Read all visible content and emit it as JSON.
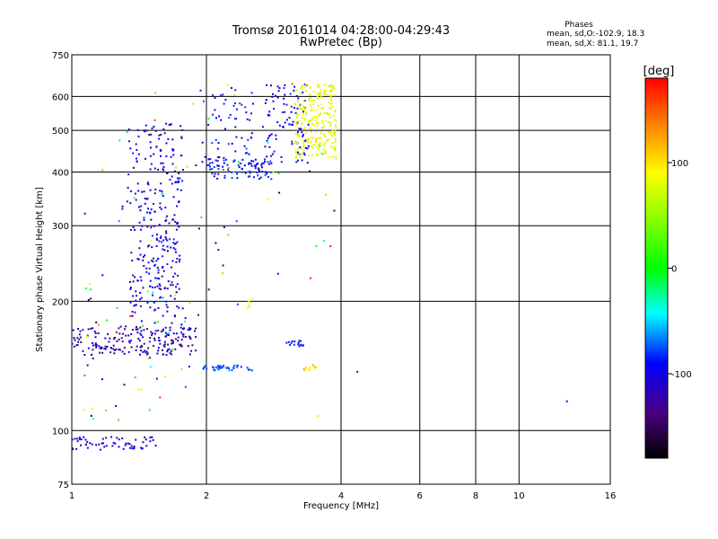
{
  "chart_data": {
    "type": "scatter",
    "title": "Tromsø 20161014 04:28:00-04:29:43",
    "subtitle": "RwPretec (Bp)",
    "xlabel": "Frequency [MHz]",
    "ylabel": "Stationary phase Virtual Height [km]",
    "x_scale": "log",
    "y_scale": "log",
    "xlim": [
      1,
      16
    ],
    "ylim": [
      75,
      750
    ],
    "x_ticks": [
      1,
      2,
      4,
      6,
      8,
      10,
      16
    ],
    "x_tick_labels": [
      "1",
      "2",
      "4",
      "6",
      "8",
      "10",
      "16"
    ],
    "y_ticks": [
      75,
      100,
      200,
      300,
      400,
      500,
      600,
      750
    ],
    "y_tick_labels": [
      "75",
      "100",
      "200",
      "300",
      "400",
      "500",
      "600",
      "750"
    ],
    "grid": true,
    "phases": {
      "heading": "Phases",
      "o_stats": "mean, sd,O:-102.9, 18.3",
      "x_stats": "mean, sd,X: 81.1, 19.7"
    },
    "colorbar": {
      "label": "[deg]",
      "range": [
        -180,
        180
      ],
      "ticks": [
        100,
        0,
        -100
      ],
      "tick_labels": [
        "100",
        "0",
        "-100"
      ]
    },
    "clusters": [
      {
        "x": [
          1.0,
          1.55
        ],
        "y": [
          90,
          97
        ],
        "phase": [
          -125,
          -95
        ],
        "n": 60
      },
      {
        "x": [
          1.0,
          1.9
        ],
        "y": [
          150,
          175
        ],
        "phase": [
          -150,
          -95
        ],
        "n": 200
      },
      {
        "x": [
          1.35,
          1.75
        ],
        "y": [
          175,
          330
        ],
        "phase": [
          -135,
          -90
        ],
        "n": 180
      },
      {
        "x": [
          1.32,
          1.78
        ],
        "y": [
          330,
          520
        ],
        "phase": [
          -130,
          -95
        ],
        "n": 120
      },
      {
        "x": [
          1.92,
          2.55
        ],
        "y": [
          420,
          630
        ],
        "phase": [
          -125,
          -80
        ],
        "n": 60
      },
      {
        "x": [
          2.0,
          2.8
        ],
        "y": [
          385,
          430
        ],
        "phase": [
          -120,
          -85
        ],
        "n": 80
      },
      {
        "x": [
          2.7,
          3.4
        ],
        "y": [
          420,
          640
        ],
        "phase": [
          -125,
          -85
        ],
        "n": 100
      },
      {
        "x": [
          3.15,
          3.9
        ],
        "y": [
          430,
          640
        ],
        "phase": [
          70,
          115
        ],
        "n": 240
      },
      {
        "x": [
          1.95,
          2.6
        ],
        "y": [
          138,
          142
        ],
        "phase": [
          -95,
          -70
        ],
        "n": 40
      },
      {
        "x": [
          3.3,
          3.55
        ],
        "y": [
          138,
          142
        ],
        "phase": [
          95,
          130
        ],
        "n": 12
      },
      {
        "x": [
          3.0,
          3.3
        ],
        "y": [
          157,
          162
        ],
        "phase": [
          -110,
          -90
        ],
        "n": 15
      },
      {
        "x": [
          2.45,
          2.55
        ],
        "y": [
          190,
          205
        ],
        "phase": [
          90,
          110
        ],
        "n": 6
      },
      {
        "x": [
          1.05,
          1.9
        ],
        "y": [
          105,
          220
        ],
        "phase": [
          -180,
          180
        ],
        "n": 50
      },
      {
        "x": [
          1.1,
          3.9
        ],
        "y": [
          170,
          650
        ],
        "phase": [
          -180,
          180
        ],
        "n": 60
      }
    ],
    "points": [
      {
        "x": 12.8,
        "y": 117,
        "phase": -110
      },
      {
        "x": 4.35,
        "y": 137,
        "phase": -120
      },
      {
        "x": 1.07,
        "y": 320,
        "phase": -100
      },
      {
        "x": 3.55,
        "y": 108,
        "phase": 110
      },
      {
        "x": 1.55,
        "y": 132,
        "phase": -120
      }
    ]
  }
}
